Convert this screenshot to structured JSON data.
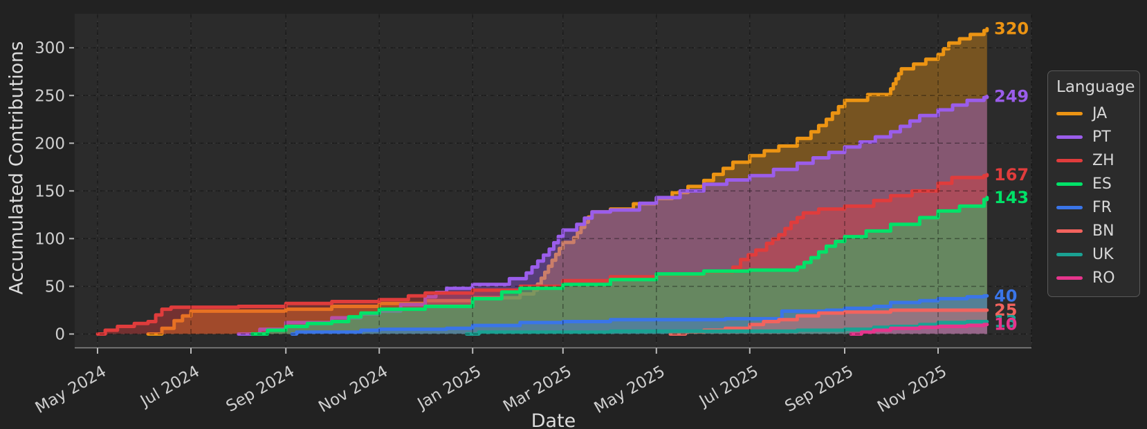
{
  "chart_data": {
    "type": "area",
    "title": "",
    "xlabel": "Date",
    "ylabel": "Accumulated Contributions",
    "grid": true,
    "background": {
      "figure": "#222222",
      "plot": "#2b2b2b"
    },
    "text_colors": {
      "tick_label": "#cfcfcf",
      "axis_label": "#dcdcdc",
      "spine": "#8a8a8a"
    },
    "x_axis": {
      "ticks": [
        {
          "date": "2024-05-01",
          "label": "May 2024"
        },
        {
          "date": "2024-07-01",
          "label": "Jul 2024"
        },
        {
          "date": "2024-09-01",
          "label": "Sep 2024"
        },
        {
          "date": "2024-11-01",
          "label": "Nov 2024"
        },
        {
          "date": "2025-01-01",
          "label": "Jan 2025"
        },
        {
          "date": "2025-03-01",
          "label": "Mar 2025"
        },
        {
          "date": "2025-05-01",
          "label": "May 2025"
        },
        {
          "date": "2025-07-01",
          "label": "Jul 2025"
        },
        {
          "date": "2025-09-01",
          "label": "Sep 2025"
        },
        {
          "date": "2025-11-01",
          "label": "Nov 2025"
        }
      ],
      "extra_gridline_dates": [
        "2026-01-01"
      ],
      "range": [
        "2024-04-16",
        "2026-01-01"
      ]
    },
    "y_axis": {
      "ticks": [
        0,
        50,
        100,
        150,
        200,
        250,
        300
      ],
      "range": [
        -14,
        336
      ]
    },
    "legend": {
      "title": "Language",
      "position": "right"
    },
    "series": [
      {
        "name": "JA",
        "color": "#EC9413",
        "end_label": "320",
        "points": [
          [
            "2024-06-03",
            0
          ],
          [
            "2024-06-12",
            6
          ],
          [
            "2024-06-20",
            14
          ],
          [
            "2024-07-01",
            24
          ],
          [
            "2024-08-01",
            24
          ],
          [
            "2024-09-01",
            26
          ],
          [
            "2024-10-01",
            29
          ],
          [
            "2024-11-01",
            32
          ],
          [
            "2024-12-01",
            35
          ],
          [
            "2025-01-01",
            38
          ],
          [
            "2025-02-01",
            42
          ],
          [
            "2025-02-10",
            46
          ],
          [
            "2025-03-01",
            96
          ],
          [
            "2025-03-08",
            101
          ],
          [
            "2025-03-20",
            128
          ],
          [
            "2025-04-01",
            131
          ],
          [
            "2025-05-01",
            142
          ],
          [
            "2025-06-01",
            161
          ],
          [
            "2025-06-20",
            180
          ],
          [
            "2025-07-01",
            187
          ],
          [
            "2025-07-20",
            197
          ],
          [
            "2025-08-01",
            205
          ],
          [
            "2025-08-10",
            212
          ],
          [
            "2025-08-20",
            225
          ],
          [
            "2025-09-01",
            245
          ],
          [
            "2025-10-01",
            257
          ],
          [
            "2025-10-08",
            278
          ],
          [
            "2025-11-01",
            293
          ],
          [
            "2025-11-08",
            305
          ],
          [
            "2025-11-22",
            314
          ],
          [
            "2025-12-01",
            318
          ],
          [
            "2025-12-03",
            320
          ]
        ]
      },
      {
        "name": "PT",
        "color": "#9B5DEB",
        "end_label": "249",
        "points": [
          [
            "2024-08-01",
            0
          ],
          [
            "2024-08-15",
            5
          ],
          [
            "2024-09-01",
            12
          ],
          [
            "2024-10-01",
            17
          ],
          [
            "2024-10-20",
            21
          ],
          [
            "2024-11-01",
            24
          ],
          [
            "2024-11-15",
            31
          ],
          [
            "2024-12-01",
            39
          ],
          [
            "2024-12-15",
            48
          ],
          [
            "2025-01-01",
            52
          ],
          [
            "2025-01-25",
            58
          ],
          [
            "2025-02-05",
            64
          ],
          [
            "2025-02-20",
            89
          ],
          [
            "2025-03-01",
            109
          ],
          [
            "2025-03-10",
            115
          ],
          [
            "2025-03-20",
            128
          ],
          [
            "2025-04-01",
            130
          ],
          [
            "2025-04-20",
            137
          ],
          [
            "2025-05-01",
            143
          ],
          [
            "2025-06-01",
            157
          ],
          [
            "2025-07-01",
            166
          ],
          [
            "2025-08-01",
            179
          ],
          [
            "2025-09-01",
            196
          ],
          [
            "2025-10-01",
            212
          ],
          [
            "2025-10-20",
            229
          ],
          [
            "2025-11-01",
            235
          ],
          [
            "2025-11-20",
            245
          ],
          [
            "2025-12-01",
            248
          ],
          [
            "2025-12-03",
            249
          ]
        ]
      },
      {
        "name": "ZH",
        "color": "#E03C3C",
        "end_label": "167",
        "points": [
          [
            "2024-05-01",
            0
          ],
          [
            "2024-05-06",
            4
          ],
          [
            "2024-05-14",
            8
          ],
          [
            "2024-05-25",
            11
          ],
          [
            "2024-06-03",
            13
          ],
          [
            "2024-06-08",
            20
          ],
          [
            "2024-06-12",
            26
          ],
          [
            "2024-06-18",
            28
          ],
          [
            "2024-08-01",
            29
          ],
          [
            "2024-09-01",
            32
          ],
          [
            "2024-10-01",
            34
          ],
          [
            "2024-11-01",
            36
          ],
          [
            "2024-11-20",
            40
          ],
          [
            "2024-12-01",
            43
          ],
          [
            "2025-01-01",
            46
          ],
          [
            "2025-02-01",
            50
          ],
          [
            "2025-03-01",
            56
          ],
          [
            "2025-04-01",
            60
          ],
          [
            "2025-05-01",
            62
          ],
          [
            "2025-06-01",
            65
          ],
          [
            "2025-06-20",
            70
          ],
          [
            "2025-06-25",
            78
          ],
          [
            "2025-07-05",
            88
          ],
          [
            "2025-07-12",
            95
          ],
          [
            "2025-07-20",
            104
          ],
          [
            "2025-07-28",
            117
          ],
          [
            "2025-08-05",
            127
          ],
          [
            "2025-08-15",
            131
          ],
          [
            "2025-09-01",
            134
          ],
          [
            "2025-09-20",
            140
          ],
          [
            "2025-10-01",
            145
          ],
          [
            "2025-10-15",
            150
          ],
          [
            "2025-11-01",
            158
          ],
          [
            "2025-11-10",
            164
          ],
          [
            "2025-12-01",
            166
          ],
          [
            "2025-12-03",
            167
          ]
        ]
      },
      {
        "name": "ES",
        "color": "#00E268",
        "end_label": "143",
        "points": [
          [
            "2024-08-10",
            0
          ],
          [
            "2024-08-20",
            4
          ],
          [
            "2024-09-01",
            8
          ],
          [
            "2024-09-15",
            11
          ],
          [
            "2024-10-01",
            13
          ],
          [
            "2024-10-12",
            18
          ],
          [
            "2024-10-20",
            22
          ],
          [
            "2024-11-01",
            26
          ],
          [
            "2024-12-01",
            29
          ],
          [
            "2025-01-01",
            37
          ],
          [
            "2025-01-20",
            44
          ],
          [
            "2025-02-01",
            48
          ],
          [
            "2025-03-01",
            52
          ],
          [
            "2025-04-01",
            57
          ],
          [
            "2025-05-01",
            63
          ],
          [
            "2025-06-01",
            66
          ],
          [
            "2025-07-01",
            67
          ],
          [
            "2025-08-01",
            70
          ],
          [
            "2025-08-10",
            80
          ],
          [
            "2025-08-20",
            92
          ],
          [
            "2025-09-01",
            102
          ],
          [
            "2025-09-15",
            108
          ],
          [
            "2025-10-01",
            115
          ],
          [
            "2025-10-20",
            122
          ],
          [
            "2025-11-01",
            129
          ],
          [
            "2025-11-15",
            134
          ],
          [
            "2025-12-01",
            141
          ],
          [
            "2025-12-03",
            143
          ]
        ]
      },
      {
        "name": "FR",
        "color": "#3A75E8",
        "end_label": "40",
        "points": [
          [
            "2024-09-05",
            0
          ],
          [
            "2024-09-08",
            2
          ],
          [
            "2024-10-20",
            4
          ],
          [
            "2024-11-01",
            5
          ],
          [
            "2024-12-15",
            6
          ],
          [
            "2025-01-01",
            9
          ],
          [
            "2025-02-01",
            12
          ],
          [
            "2025-03-01",
            13
          ],
          [
            "2025-04-01",
            15
          ],
          [
            "2025-06-15",
            16
          ],
          [
            "2025-07-22",
            24
          ],
          [
            "2025-08-20",
            25
          ],
          [
            "2025-09-01",
            27
          ],
          [
            "2025-09-20",
            29
          ],
          [
            "2025-10-01",
            33
          ],
          [
            "2025-10-20",
            35
          ],
          [
            "2025-11-01",
            37
          ],
          [
            "2025-11-20",
            39
          ],
          [
            "2025-12-01",
            40
          ],
          [
            "2025-12-03",
            40
          ]
        ]
      },
      {
        "name": "BN",
        "color": "#F2635E",
        "end_label": "25",
        "points": [
          [
            "2025-05-10",
            0
          ],
          [
            "2025-05-20",
            2
          ],
          [
            "2025-06-01",
            4
          ],
          [
            "2025-06-15",
            6
          ],
          [
            "2025-07-01",
            10
          ],
          [
            "2025-07-10",
            13
          ],
          [
            "2025-07-20",
            15
          ],
          [
            "2025-08-01",
            19
          ],
          [
            "2025-08-15",
            22
          ],
          [
            "2025-09-01",
            23
          ],
          [
            "2025-10-01",
            25
          ],
          [
            "2025-12-03",
            25
          ]
        ]
      },
      {
        "name": "UK",
        "color": "#1AA293",
        "end_label": "13",
        "points": [
          [
            "2024-12-28",
            0
          ],
          [
            "2025-01-05",
            2
          ],
          [
            "2025-04-01",
            3
          ],
          [
            "2025-07-01",
            3
          ],
          [
            "2025-08-01",
            4
          ],
          [
            "2025-09-01",
            5
          ],
          [
            "2025-09-20",
            7
          ],
          [
            "2025-10-01",
            8
          ],
          [
            "2025-10-20",
            10
          ],
          [
            "2025-11-01",
            12
          ],
          [
            "2025-11-20",
            13
          ],
          [
            "2025-12-03",
            13
          ]
        ]
      },
      {
        "name": "RO",
        "color": "#E6358C",
        "end_label": "10",
        "points": [
          [
            "2025-09-05",
            0
          ],
          [
            "2025-09-12",
            2
          ],
          [
            "2025-09-20",
            4
          ],
          [
            "2025-10-01",
            6
          ],
          [
            "2025-10-20",
            7
          ],
          [
            "2025-11-01",
            8
          ],
          [
            "2025-11-20",
            9
          ],
          [
            "2025-12-01",
            10
          ],
          [
            "2025-12-03",
            10
          ]
        ]
      }
    ]
  }
}
